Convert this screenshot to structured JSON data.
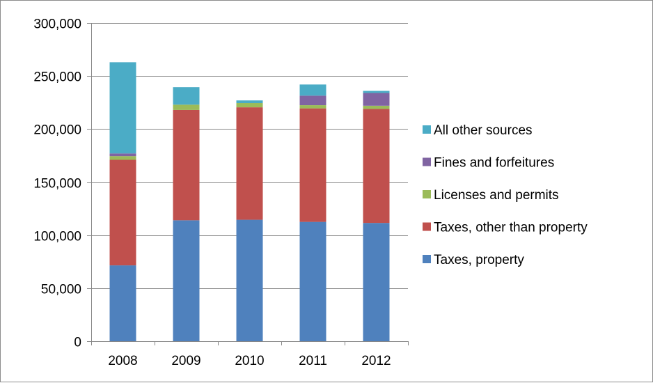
{
  "chart_data": {
    "type": "bar",
    "stacked": true,
    "categories": [
      "2008",
      "2009",
      "2010",
      "2011",
      "2012"
    ],
    "series": [
      {
        "name": "Taxes, property",
        "color": "#4f81bd",
        "values": [
          71500,
          114000,
          114500,
          112500,
          111500
        ]
      },
      {
        "name": "Taxes, other than property",
        "color": "#c0504d",
        "values": [
          99500,
          104000,
          106000,
          107000,
          107500
        ]
      },
      {
        "name": "Licenses and permits",
        "color": "#9bbb59",
        "values": [
          3500,
          5000,
          4000,
          3000,
          3000
        ]
      },
      {
        "name": "Fines and forfeitures",
        "color": "#8064a2",
        "values": [
          2500,
          0,
          0,
          9000,
          12000
        ]
      },
      {
        "name": "All other sources",
        "color": "#4bacc6",
        "values": [
          86000,
          16500,
          2500,
          10500,
          2000
        ]
      }
    ],
    "ylim": [
      0,
      300000
    ],
    "yticks": [
      "0",
      "50,000",
      "100,000",
      "150,000",
      "200,000",
      "250,000",
      "300,000"
    ],
    "grid": true,
    "legend": "right"
  }
}
